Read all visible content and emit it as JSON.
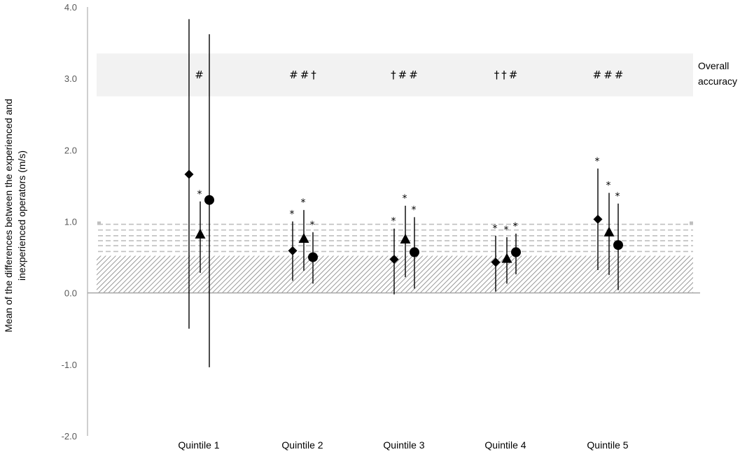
{
  "chart_data": {
    "type": "scatter",
    "title": "",
    "xlabel": "",
    "ylabel_line1": "Mean of the differences between the experienced and",
    "ylabel_line2": "inexperienced operators (m/s)",
    "ylim": [
      -2.0,
      4.0
    ],
    "yticks": [
      "-2.0",
      "-1.0",
      "0.0",
      "1.0",
      "2.0",
      "3.0",
      "4.0"
    ],
    "grid": false,
    "categories": [
      "Quintile 1",
      "Quintile 2",
      "Quintile 3",
      "Quintile 4",
      "Quintile 5"
    ],
    "series": [
      {
        "marker": "diamond",
        "mean": [
          1.66,
          0.59,
          0.47,
          0.43,
          1.03
        ],
        "lower": [
          -0.5,
          0.17,
          -0.02,
          0.02,
          0.32
        ],
        "upper": [
          3.83,
          1.0,
          0.9,
          0.8,
          1.74
        ],
        "significant": [
          false,
          true,
          true,
          true,
          true
        ]
      },
      {
        "marker": "triangle",
        "mean": [
          0.82,
          0.76,
          0.75,
          0.48,
          0.85
        ],
        "lower": [
          0.28,
          0.31,
          0.22,
          0.13,
          0.25
        ],
        "upper": [
          1.28,
          1.16,
          1.22,
          0.78,
          1.4
        ],
        "significant": [
          true,
          true,
          true,
          true,
          true
        ]
      },
      {
        "marker": "circle",
        "mean": [
          1.3,
          0.5,
          0.57,
          0.57,
          0.67
        ],
        "lower": [
          -1.04,
          0.13,
          0.06,
          0.26,
          0.04
        ],
        "upper": [
          3.62,
          0.85,
          1.06,
          0.83,
          1.25
        ],
        "significant": [
          false,
          true,
          true,
          true,
          true
        ]
      }
    ],
    "significance_marker": "*",
    "overall_accuracy": {
      "label_line1": "Overall",
      "label_line2": "accuracy",
      "band": [
        2.75,
        3.35
      ],
      "annotations": [
        "#",
        "##†",
        "†##",
        "††#",
        "###"
      ]
    },
    "reference_region": {
      "hatched_band": [
        0.0,
        0.52
      ],
      "dashed_lines": [
        0.58,
        0.66,
        0.73,
        0.8,
        0.88,
        0.96
      ]
    },
    "colors": {
      "marker": "#000000",
      "axis": "#bfbfbf",
      "zero_line": "#a6a6a6",
      "band": "#f2f2f2",
      "dashed": "#bfbfbf",
      "hatch": "#7f7f7f"
    }
  }
}
